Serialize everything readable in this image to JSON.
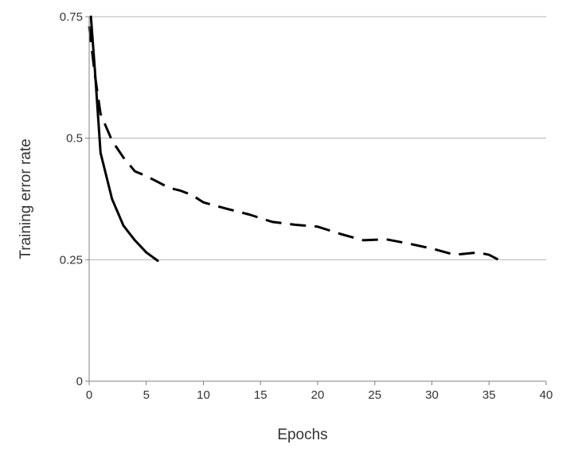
{
  "chart_data": {
    "type": "line",
    "title": "",
    "xlabel": "Epochs",
    "ylabel": "Training error rate",
    "xlim": [
      0,
      40
    ],
    "ylim": [
      0,
      0.75
    ],
    "x_ticks": [
      0,
      5,
      10,
      15,
      20,
      25,
      30,
      35,
      40
    ],
    "x_tick_labels": [
      "0",
      "5",
      "10",
      "15",
      "20",
      "25",
      "30",
      "35",
      "40"
    ],
    "y_ticks": [
      0,
      0.25,
      0.5,
      0.75
    ],
    "y_tick_labels": [
      "0",
      "0.25",
      "0.5",
      "0.75"
    ],
    "grid": {
      "horizontal": true,
      "vertical": false
    },
    "legend": "none",
    "series": [
      {
        "style": "solid",
        "color": "#000000",
        "x": [
          0.15,
          0.5,
          1,
          2,
          3,
          4,
          5,
          6
        ],
        "y": [
          0.75,
          0.64,
          0.47,
          0.375,
          0.32,
          0.29,
          0.265,
          0.248
        ]
      },
      {
        "style": "dashed",
        "color": "#000000",
        "x": [
          0,
          0.5,
          1,
          2,
          3,
          4,
          5,
          6,
          7,
          8,
          9,
          10,
          12,
          14,
          16,
          18,
          20,
          22,
          24,
          26,
          28,
          30,
          32,
          34,
          35,
          36
        ],
        "y": [
          0.73,
          0.63,
          0.55,
          0.495,
          0.46,
          0.432,
          0.422,
          0.41,
          0.398,
          0.392,
          0.383,
          0.368,
          0.355,
          0.343,
          0.328,
          0.322,
          0.318,
          0.303,
          0.29,
          0.292,
          0.283,
          0.273,
          0.26,
          0.265,
          0.26,
          0.248
        ]
      }
    ]
  }
}
